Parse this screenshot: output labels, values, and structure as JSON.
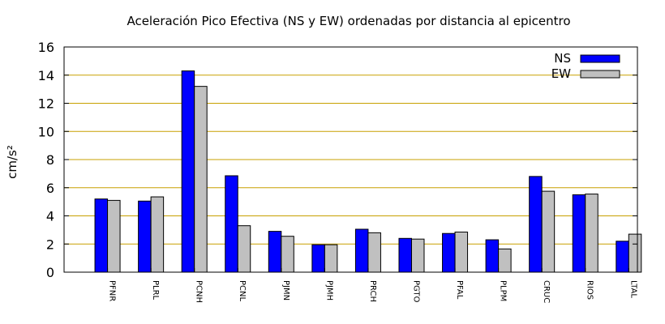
{
  "chart_data": {
    "type": "bar",
    "title": "Aceleración Pico Efectiva (NS y EW) ordenadas por distancia al epicentro",
    "xlabel": "",
    "ylabel": "cm/s²",
    "ylim": [
      0,
      16
    ],
    "yticks": [
      0,
      2,
      4,
      6,
      8,
      10,
      12,
      14,
      16
    ],
    "grid": "horizontal",
    "legend_position": "top-right",
    "categories": [
      "PFNR",
      "PLRL",
      "PCNH",
      "PCNL",
      "PJMN",
      "PJMH",
      "PRCH",
      "PGTO",
      "PFAL",
      "PLPM",
      "CRUC",
      "RIOS",
      "LTAL"
    ],
    "series": [
      {
        "name": "NS",
        "color": "#0000ff",
        "values": [
          5.2,
          5.05,
          14.3,
          6.85,
          2.9,
          1.95,
          3.05,
          2.4,
          2.75,
          2.3,
          6.8,
          5.5,
          2.2
        ]
      },
      {
        "name": "EW",
        "color": "#c0c0c0",
        "values": [
          5.1,
          5.35,
          13.2,
          3.3,
          2.55,
          1.95,
          2.8,
          2.35,
          2.85,
          1.65,
          5.75,
          5.55,
          2.7
        ]
      }
    ],
    "grid_color": "#c8a000"
  }
}
